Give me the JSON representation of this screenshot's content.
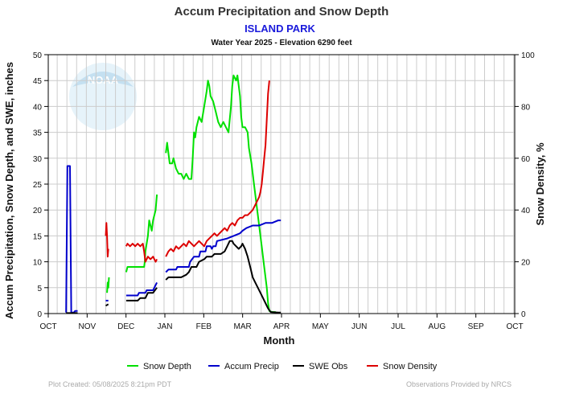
{
  "chart_data": {
    "type": "line",
    "title": "Accum Precipitation and Snow Depth",
    "subtitle": "ISLAND PARK",
    "subtitle2": "Water Year 2025 -  Elevation 6290 feet",
    "xlabel": "Month",
    "ylabel_left": "Accum Precipitation, Snow Depth, and SWE, inches",
    "ylabel_right": "Snow Density, %",
    "x_ticks": [
      "OCT",
      "NOV",
      "DEC",
      "JAN",
      "FEB",
      "MAR",
      "APR",
      "MAY",
      "JUN",
      "JUL",
      "AUG",
      "SEP",
      "OCT"
    ],
    "ylim_left": [
      0,
      50
    ],
    "ylim_right": [
      0,
      100
    ],
    "y_ticks_left": [
      0,
      5,
      10,
      15,
      20,
      25,
      30,
      35,
      40,
      45,
      50
    ],
    "y_ticks_right": [
      0,
      20,
      40,
      60,
      80,
      100
    ],
    "grid": true,
    "legend_position": "bottom",
    "x_unit": "day of water year",
    "series": [
      {
        "name": "Snow Depth",
        "color": "#00e000",
        "axis": "left",
        "segments": [
          [
            [
              46,
              4
            ],
            [
              46.5,
              6
            ],
            [
              47,
              5
            ],
            [
              47.5,
              7
            ]
          ],
          [
            [
              61,
              8
            ],
            [
              62,
              9
            ],
            [
              70,
              9
            ],
            [
              75,
              9
            ],
            [
              75.5,
              10
            ],
            [
              76,
              12
            ],
            [
              78,
              15
            ],
            [
              79,
              18
            ],
            [
              80,
              17
            ],
            [
              81,
              16
            ],
            [
              82,
              18
            ],
            [
              84,
              20
            ],
            [
              85,
              23
            ]
          ],
          [
            [
              92,
              31
            ],
            [
              93,
              33
            ],
            [
              94,
              31
            ],
            [
              95,
              29
            ],
            [
              97,
              29
            ],
            [
              98,
              30
            ],
            [
              100,
              28
            ],
            [
              102,
              27
            ],
            [
              104,
              27
            ],
            [
              106,
              26
            ],
            [
              108,
              27
            ],
            [
              110,
              26
            ],
            [
              112,
              26
            ],
            [
              113,
              30
            ],
            [
              114,
              35
            ],
            [
              115,
              34
            ],
            [
              116,
              36
            ],
            [
              118,
              38
            ],
            [
              120,
              37
            ],
            [
              122,
              40
            ],
            [
              124,
              43
            ],
            [
              125,
              45
            ],
            [
              126,
              44
            ],
            [
              127,
              42
            ],
            [
              129,
              41
            ],
            [
              131,
              39
            ],
            [
              133,
              37
            ],
            [
              135,
              36
            ],
            [
              137,
              37
            ],
            [
              139,
              36
            ],
            [
              141,
              35
            ],
            [
              143,
              40
            ],
            [
              144,
              44
            ],
            [
              145,
              46
            ],
            [
              147,
              45
            ],
            [
              148,
              46
            ],
            [
              150,
              42
            ],
            [
              151,
              38
            ],
            [
              152,
              36
            ],
            [
              154,
              36
            ],
            [
              156,
              35
            ],
            [
              157,
              32
            ],
            [
              159,
              29
            ],
            [
              161,
              25
            ],
            [
              163,
              21
            ],
            [
              165,
              17
            ],
            [
              167,
              13
            ],
            [
              169,
              9
            ],
            [
              171,
              5
            ],
            [
              172,
              2
            ],
            [
              173,
              0.5
            ],
            [
              175,
              0.3
            ],
            [
              178,
              0.3
            ]
          ]
        ]
      },
      {
        "name": "Accum Precip",
        "color": "#0000cc",
        "axis": "left",
        "segments": [
          [
            [
              14,
              0.2
            ],
            [
              15,
              28.5
            ],
            [
              17,
              28.5
            ],
            [
              18,
              0.2
            ],
            [
              20,
              0.2
            ],
            [
              21,
              0.5
            ],
            [
              23,
              0.5
            ]
          ],
          [
            [
              45,
              2.5
            ],
            [
              47,
              2.5
            ]
          ],
          [
            [
              61,
              3.5
            ],
            [
              70,
              3.5
            ],
            [
              71,
              4
            ],
            [
              76,
              4
            ],
            [
              77,
              4.5
            ],
            [
              82,
              4.5
            ],
            [
              83,
              5
            ],
            [
              84,
              5.5
            ],
            [
              85,
              6
            ]
          ],
          [
            [
              92,
              8
            ],
            [
              94,
              8.5
            ],
            [
              100,
              8.5
            ],
            [
              101,
              9
            ],
            [
              110,
              9
            ],
            [
              111,
              10
            ],
            [
              114,
              11
            ],
            [
              118,
              11
            ],
            [
              119,
              12
            ],
            [
              123,
              12
            ],
            [
              124,
              13
            ],
            [
              127,
              13
            ],
            [
              128,
              12.5
            ],
            [
              129,
              13
            ],
            [
              131,
              13
            ],
            [
              132,
              14
            ],
            [
              140,
              14.5
            ],
            [
              145,
              15
            ],
            [
              150,
              15.5
            ],
            [
              152,
              16
            ],
            [
              155,
              16.5
            ],
            [
              160,
              17
            ],
            [
              165,
              17
            ],
            [
              170,
              17.5
            ],
            [
              175,
              17.5
            ],
            [
              180,
              18
            ],
            [
              182,
              18
            ]
          ]
        ]
      },
      {
        "name": "SWE Obs",
        "color": "#000000",
        "axis": "left",
        "segments": [
          [
            [
              14,
              0.1
            ],
            [
              23,
              0.1
            ]
          ],
          [
            [
              45,
              1.5
            ],
            [
              47,
              1.8
            ]
          ],
          [
            [
              61,
              2.5
            ],
            [
              70,
              2.5
            ],
            [
              72,
              3
            ],
            [
              76,
              3
            ],
            [
              78,
              4
            ],
            [
              82,
              4
            ],
            [
              85,
              5
            ]
          ],
          [
            [
              92,
              6.5
            ],
            [
              94,
              7
            ],
            [
              100,
              7
            ],
            [
              104,
              7
            ],
            [
              108,
              7.5
            ],
            [
              110,
              8
            ],
            [
              112,
              9
            ],
            [
              116,
              9
            ],
            [
              118,
              10
            ],
            [
              122,
              10.5
            ],
            [
              124,
              11
            ],
            [
              128,
              11
            ],
            [
              130,
              11.5
            ],
            [
              135,
              11.5
            ],
            [
              138,
              12
            ],
            [
              140,
              13
            ],
            [
              142,
              14
            ],
            [
              144,
              14
            ],
            [
              145,
              13.5
            ],
            [
              147,
              13
            ],
            [
              149,
              12.5
            ],
            [
              151,
              13
            ],
            [
              152,
              13.5
            ],
            [
              154,
              12.5
            ],
            [
              156,
              11
            ],
            [
              158,
              9
            ],
            [
              160,
              7
            ],
            [
              162,
              6
            ],
            [
              164,
              5
            ],
            [
              166,
              4
            ],
            [
              168,
              3
            ],
            [
              170,
              2
            ],
            [
              172,
              1
            ],
            [
              174,
              0.3
            ],
            [
              180,
              0.2
            ],
            [
              182,
              0.2
            ]
          ]
        ]
      },
      {
        "name": "Snow Density",
        "color": "#dd0000",
        "axis": "right",
        "segments": [
          [
            [
              45,
              30
            ],
            [
              45.5,
              35
            ],
            [
              46,
              30
            ],
            [
              46.5,
              22
            ],
            [
              47,
              25
            ]
          ],
          [
            [
              61,
              26
            ],
            [
              62,
              27
            ],
            [
              64,
              26
            ],
            [
              66,
              27
            ],
            [
              68,
              26
            ],
            [
              70,
              27
            ],
            [
              72,
              26
            ],
            [
              74,
              27
            ],
            [
              75,
              24
            ],
            [
              76,
              20
            ],
            [
              78,
              22
            ],
            [
              80,
              21
            ],
            [
              82,
              22
            ],
            [
              84,
              20
            ],
            [
              85,
              21
            ]
          ],
          [
            [
              92,
              22
            ],
            [
              94,
              24
            ],
            [
              96,
              25
            ],
            [
              98,
              24
            ],
            [
              100,
              26
            ],
            [
              102,
              25
            ],
            [
              104,
              26
            ],
            [
              106,
              27
            ],
            [
              108,
              26
            ],
            [
              110,
              28
            ],
            [
              112,
              27
            ],
            [
              114,
              26
            ],
            [
              116,
              27
            ],
            [
              118,
              28
            ],
            [
              120,
              27
            ],
            [
              122,
              26
            ],
            [
              124,
              28
            ],
            [
              126,
              29
            ],
            [
              128,
              30
            ],
            [
              130,
              31
            ],
            [
              132,
              30
            ],
            [
              134,
              31
            ],
            [
              136,
              32
            ],
            [
              138,
              33
            ],
            [
              140,
              32
            ],
            [
              142,
              34
            ],
            [
              144,
              35
            ],
            [
              146,
              34
            ],
            [
              148,
              36
            ],
            [
              150,
              37
            ],
            [
              152,
              37
            ],
            [
              154,
              38
            ],
            [
              156,
              38
            ],
            [
              158,
              39
            ],
            [
              160,
              40
            ],
            [
              162,
              42
            ],
            [
              164,
              44
            ],
            [
              165,
              45
            ],
            [
              166,
              47
            ],
            [
              167,
              50
            ],
            [
              168,
              55
            ],
            [
              169,
              60
            ],
            [
              170,
              65
            ],
            [
              171,
              75
            ],
            [
              172,
              85
            ],
            [
              173,
              90
            ]
          ]
        ]
      }
    ]
  },
  "footer": {
    "left": "Plot Created:  05/08/2025 8:21pm PDT",
    "right": "Observations Provided by NRCS"
  },
  "logo": {
    "text": "NOAA"
  }
}
